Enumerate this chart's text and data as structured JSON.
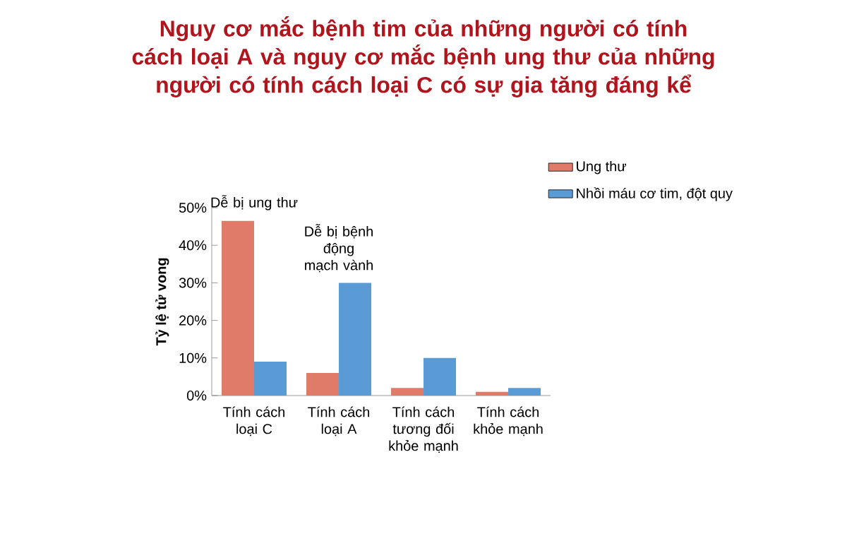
{
  "chart_data": {
    "type": "bar",
    "title": "Nguy cơ mắc bệnh tim của những người có tính cách loại A và nguy cơ mắc bệnh ung thư của những người có tính cách loại C có sự gia tăng đáng kể",
    "ylabel": "Tỷ lệ tử vong",
    "categories": [
      "Tính cách loại C",
      "Tính cách loại A",
      "Tính cách tương đối khỏe mạnh",
      "Tính cách khỏe mạnh"
    ],
    "series": [
      {
        "name": "Ung thư",
        "color": "#e07b6a",
        "values": [
          46.5,
          6,
          2,
          1
        ]
      },
      {
        "name": "Nhồi máu cơ tim, đột quy",
        "color": "#5b9bd5",
        "values": [
          9,
          30,
          10,
          2
        ]
      }
    ],
    "ylim": [
      0,
      50
    ],
    "yticks": [
      {
        "value": 0,
        "label": "0%"
      },
      {
        "value": 10,
        "label": "10%"
      },
      {
        "value": 20,
        "label": "20%"
      },
      {
        "value": 30,
        "label": "30%"
      },
      {
        "value": 40,
        "label": "40%"
      },
      {
        "value": 50,
        "label": "50%"
      }
    ],
    "annotations": [
      {
        "text": "Dễ bị ung thư",
        "x": "Tính cách loại C",
        "y": 46.5
      },
      {
        "text": "Dễ bị bệnh động mạch vành",
        "x": "Tính cách loại A",
        "y": 30
      }
    ],
    "legend": "top right"
  }
}
